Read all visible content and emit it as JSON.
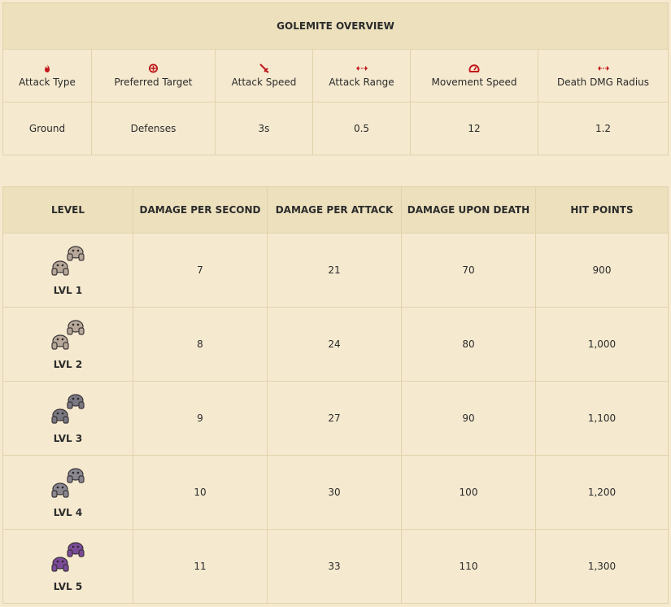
{
  "overview": {
    "title": "GOLEMITE OVERVIEW",
    "stats": [
      {
        "label": "Attack Type",
        "value": "Ground",
        "icon": "fire-icon"
      },
      {
        "label": "Preferred Target",
        "value": "Defenses",
        "icon": "target-icon"
      },
      {
        "label": "Attack Speed",
        "value": "3s",
        "icon": "sword-icon"
      },
      {
        "label": "Attack Range",
        "value": "0.5",
        "icon": "range-arrows-icon"
      },
      {
        "label": "Movement Speed",
        "value": "12",
        "icon": "speedometer-icon"
      },
      {
        "label": "Death DMG Radius",
        "value": "1.2",
        "icon": "radius-arrows-icon"
      }
    ],
    "icon_color": "#c0171b"
  },
  "levels_table": {
    "headers": [
      "LEVEL",
      "DAMAGE PER SECOND",
      "DAMAGE PER ATTACK",
      "DAMAGE UPON DEATH",
      "HIT POINTS"
    ],
    "rows": [
      {
        "level": "LVL 1",
        "dps": "7",
        "dpa": "21",
        "death": "70",
        "hp": "900",
        "tint": "#b7a89a"
      },
      {
        "level": "LVL 2",
        "dps": "8",
        "dpa": "24",
        "death": "80",
        "hp": "1,000",
        "tint": "#b7a89a"
      },
      {
        "level": "LVL 3",
        "dps": "9",
        "dpa": "27",
        "death": "90",
        "hp": "1,100",
        "tint": "#7a7882"
      },
      {
        "level": "LVL 4",
        "dps": "10",
        "dpa": "30",
        "death": "100",
        "hp": "1,200",
        "tint": "#8b8790"
      },
      {
        "level": "LVL 5",
        "dps": "11",
        "dpa": "33",
        "death": "110",
        "hp": "1,300",
        "tint": "#7b4a9a"
      }
    ]
  }
}
